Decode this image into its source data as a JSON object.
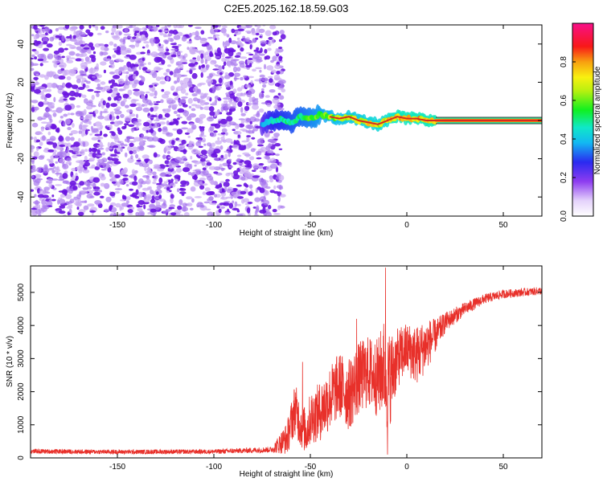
{
  "title": "C2E5.2025.162.18.59.G03",
  "colors": {
    "snr_line": "#e8302a",
    "tone_line": "#d42a20",
    "noise_dark": "#6a14e0",
    "noise_light": "#c9a8f3"
  },
  "chart_data": [
    {
      "type": "heatmap",
      "name": "spectrogram",
      "xlabel": "Height of straight line (km)",
      "ylabel": "Frequency (Hz)",
      "xlim": [
        -195,
        70
      ],
      "ylim": [
        -50,
        50
      ],
      "xticks": [
        -150,
        -100,
        -50,
        0,
        50
      ],
      "yticks": [
        -40,
        -20,
        0,
        20,
        40
      ],
      "colorbar": {
        "label": "Normalized spectral amplitude",
        "range": [
          0,
          1
        ],
        "ticks": [
          "0.0",
          "0.2",
          "0.4",
          "0.6",
          "0.8"
        ],
        "colormap": "rainbow (white → violet → blue → cyan → green → yellow → orange → red → magenta)"
      },
      "noise_region_x": [
        -195,
        -70
      ],
      "carrier_track": {
        "x": [
          -75,
          -70,
          -65,
          -60,
          -55,
          -50,
          -45,
          -40,
          -35,
          -30,
          -25,
          -20,
          -15,
          -10,
          -5,
          0,
          5,
          10,
          15,
          20,
          30,
          40,
          50,
          60,
          70
        ],
        "frequency": [
          -2,
          0,
          1,
          -1,
          2,
          1,
          3,
          2,
          1,
          2,
          0,
          -1,
          -2,
          0,
          2,
          1,
          1,
          0,
          0,
          0,
          0,
          0,
          0,
          0,
          0
        ],
        "amplitude": [
          0.2,
          0.35,
          0.4,
          0.45,
          0.5,
          0.55,
          0.6,
          0.65,
          0.7,
          0.75,
          0.75,
          0.8,
          0.8,
          0.85,
          0.9,
          0.9,
          0.9,
          0.9,
          0.92,
          0.95,
          0.95,
          0.95,
          0.95,
          0.95,
          0.95
        ]
      }
    },
    {
      "type": "line",
      "name": "snr",
      "xlabel": "Height of straight line (km)",
      "ylabel": "SNR (10 * v/v)",
      "xlim": [
        -195,
        70
      ],
      "ylim": [
        0,
        5800
      ],
      "xticks": [
        -150,
        -100,
        -50,
        0,
        50
      ],
      "yticks": [
        0,
        1000,
        2000,
        3000,
        4000,
        5000
      ],
      "envelope": {
        "x": [
          -195,
          -150,
          -100,
          -70,
          -62,
          -58,
          -55,
          -52,
          -50,
          -45,
          -40,
          -35,
          -30,
          -25,
          -20,
          -15,
          -12,
          -10,
          -5,
          0,
          5,
          10,
          15,
          20,
          30,
          40,
          50,
          60,
          70
        ],
        "mean": [
          200,
          180,
          190,
          250,
          600,
          1500,
          1000,
          800,
          1200,
          1400,
          1800,
          2200,
          1900,
          2400,
          2600,
          2400,
          2800,
          2200,
          3000,
          3300,
          3100,
          3400,
          3700,
          4100,
          4500,
          4800,
          4950,
          5000,
          5050
        ],
        "spread": [
          70,
          70,
          70,
          90,
          500,
          800,
          700,
          700,
          800,
          900,
          1000,
          1000,
          1100,
          1100,
          1100,
          1200,
          1400,
          1600,
          900,
          800,
          900,
          800,
          500,
          300,
          200,
          150,
          130,
          120,
          120
        ]
      },
      "peaks": [
        {
          "x": -54,
          "y": 2900
        },
        {
          "x": -26,
          "y": 4200
        },
        {
          "x": -11,
          "y": 5750
        },
        {
          "x": -10,
          "y": 100
        }
      ]
    }
  ]
}
